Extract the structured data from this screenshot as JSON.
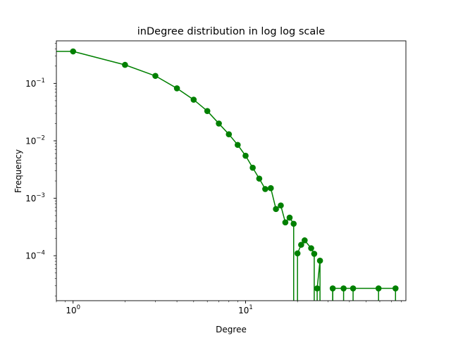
{
  "chart_data": {
    "type": "line",
    "title": "inDegree distribution in log log scale",
    "xlabel": "Degree",
    "ylabel": "Frequency",
    "xscale": "log",
    "yscale": "log",
    "xlim": [
      0.8,
      85
    ],
    "ylim": [
      1.65e-05,
      0.55
    ],
    "grid": false,
    "color": "#008000",
    "x_ticks": [
      {
        "value": 1,
        "base": "10",
        "exp": "0"
      },
      {
        "value": 10,
        "base": "10",
        "exp": "1"
      }
    ],
    "y_ticks": [
      {
        "value": 0.1,
        "base": "10",
        "exp": "−1"
      },
      {
        "value": 0.01,
        "base": "10",
        "exp": "−2"
      },
      {
        "value": 0.001,
        "base": "10",
        "exp": "−3"
      },
      {
        "value": 0.0001,
        "base": "10",
        "exp": "−4"
      }
    ],
    "series": [
      {
        "x": [
          0.7,
          1,
          2,
          3,
          4,
          5,
          6,
          7,
          8,
          9,
          10,
          11,
          12,
          13,
          14,
          15,
          16,
          17,
          18,
          19,
          20,
          21,
          22,
          24,
          25,
          26,
          27,
          32,
          37,
          42,
          59,
          74
        ],
        "y": [
          0.36,
          0.36,
          0.21,
          0.135,
          0.082,
          0.052,
          0.033,
          0.02,
          0.013,
          0.0085,
          0.0055,
          0.0034,
          0.0022,
          0.00145,
          0.0015,
          0.00065,
          0.00075,
          0.00038,
          0.00046,
          0.00036,
          0.00011,
          0.000155,
          0.000185,
          0.000135,
          0.000108,
          2.7e-05,
          8.2e-05,
          2.7e-05,
          2.7e-05,
          2.7e-05,
          2.7e-05,
          2.7e-05
        ]
      }
    ]
  }
}
